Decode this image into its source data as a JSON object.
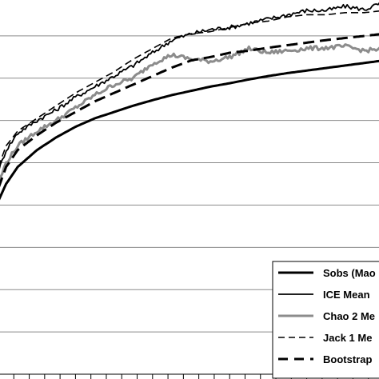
{
  "chart_data": {
    "type": "line",
    "title": "",
    "xlabel": "",
    "ylabel": "",
    "xlim": [
      0,
      100
    ],
    "ylim": [
      0,
      9
    ],
    "grid": {
      "horizontal": true,
      "vertical": false
    },
    "legend": {
      "placement": "bottom-right"
    },
    "x": [
      0,
      2,
      5,
      10,
      15,
      20,
      25,
      30,
      35,
      40,
      45,
      50,
      55,
      60,
      65,
      70,
      75,
      80,
      85,
      90,
      95,
      100
    ],
    "series": [
      {
        "name": "Sobs (Mao",
        "color": "#000000",
        "style": "solid-thick",
        "values": [
          4.1,
          4.5,
          4.9,
          5.3,
          5.6,
          5.85,
          6.05,
          6.2,
          6.35,
          6.48,
          6.6,
          6.7,
          6.8,
          6.88,
          6.97,
          7.05,
          7.12,
          7.18,
          7.24,
          7.3,
          7.36,
          7.42
        ]
      },
      {
        "name": "ICE Mean",
        "color": "#000000",
        "style": "solid-thin",
        "values": [
          4.8,
          5.3,
          5.7,
          6.0,
          6.25,
          6.55,
          6.8,
          7.05,
          7.3,
          7.6,
          7.9,
          8.05,
          8.15,
          8.2,
          8.3,
          8.4,
          8.5,
          8.6,
          8.6,
          8.7,
          8.62,
          8.8
        ]
      },
      {
        "name": "Chao 2 Me",
        "color": "#8c8c8c",
        "style": "solid-gray",
        "values": [
          4.5,
          5.0,
          5.4,
          5.75,
          6.0,
          6.3,
          6.6,
          6.85,
          7.0,
          7.35,
          7.55,
          7.45,
          7.4,
          7.5,
          7.7,
          7.6,
          7.65,
          7.7,
          7.72,
          7.75,
          7.65,
          7.7
        ]
      },
      {
        "name": "Jack 1 Me",
        "color": "#000000",
        "style": "dashed-thin",
        "values": [
          4.9,
          5.4,
          5.75,
          6.05,
          6.35,
          6.65,
          6.9,
          7.15,
          7.45,
          7.7,
          7.95,
          8.05,
          8.1,
          8.2,
          8.3,
          8.35,
          8.45,
          8.5,
          8.5,
          8.55,
          8.55,
          8.6
        ]
      },
      {
        "name": "Bootstrap",
        "color": "#000000",
        "style": "dashed-thick",
        "values": [
          4.4,
          4.9,
          5.3,
          5.65,
          5.95,
          6.2,
          6.45,
          6.65,
          6.85,
          7.05,
          7.25,
          7.42,
          7.5,
          7.6,
          7.65,
          7.72,
          7.78,
          7.84,
          7.9,
          7.95,
          8.0,
          8.05
        ]
      }
    ]
  }
}
